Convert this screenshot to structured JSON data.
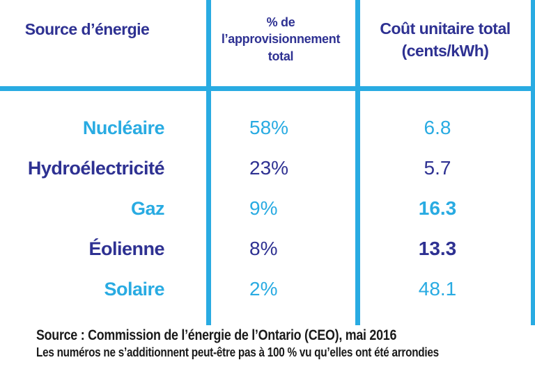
{
  "table": {
    "columns": [
      {
        "label": "Source d’énergie"
      },
      {
        "label": "% de\nl’approvisionnement\ntotal"
      },
      {
        "label": "Coût unitaire total\n(cents/kWh)"
      }
    ],
    "rows": [
      {
        "source": "Nucléaire",
        "share": "58%",
        "cost": "6.8"
      },
      {
        "source": "Hydroélectricité",
        "share": "23%",
        "cost": "5.7"
      },
      {
        "source": "Gaz",
        "share": "9%",
        "cost": "16.3"
      },
      {
        "source": "Éolienne",
        "share": "8%",
        "cost": "13.3"
      },
      {
        "source": "Solaire",
        "share": "2%",
        "cost": "48.1"
      }
    ]
  },
  "chart_data": {
    "type": "table",
    "title": "",
    "categories": [
      "Nucléaire",
      "Hydroélectricité",
      "Gaz",
      "Éolienne",
      "Solaire"
    ],
    "series": [
      {
        "name": "% de l’approvisionnement total",
        "values": [
          58,
          23,
          9,
          8,
          2
        ],
        "unit": "%"
      },
      {
        "name": "Coût unitaire total (cents/kWh)",
        "values": [
          6.8,
          5.7,
          16.3,
          13.3,
          48.1
        ],
        "unit": "cents/kWh"
      }
    ],
    "legend_position": "none",
    "grid": false
  },
  "footer": {
    "source_line": "Source : Commission de l’énergie de l’Ontario (CEO), mai 2016",
    "note_line": "Les numéros ne s’additionnent peut-être pas à 100 % vu qu’elles ont été arrondies"
  },
  "colors": {
    "accent_cyan": "#29ABE2",
    "accent_navy": "#2E3192",
    "footer_text": "#1A1A1A"
  }
}
